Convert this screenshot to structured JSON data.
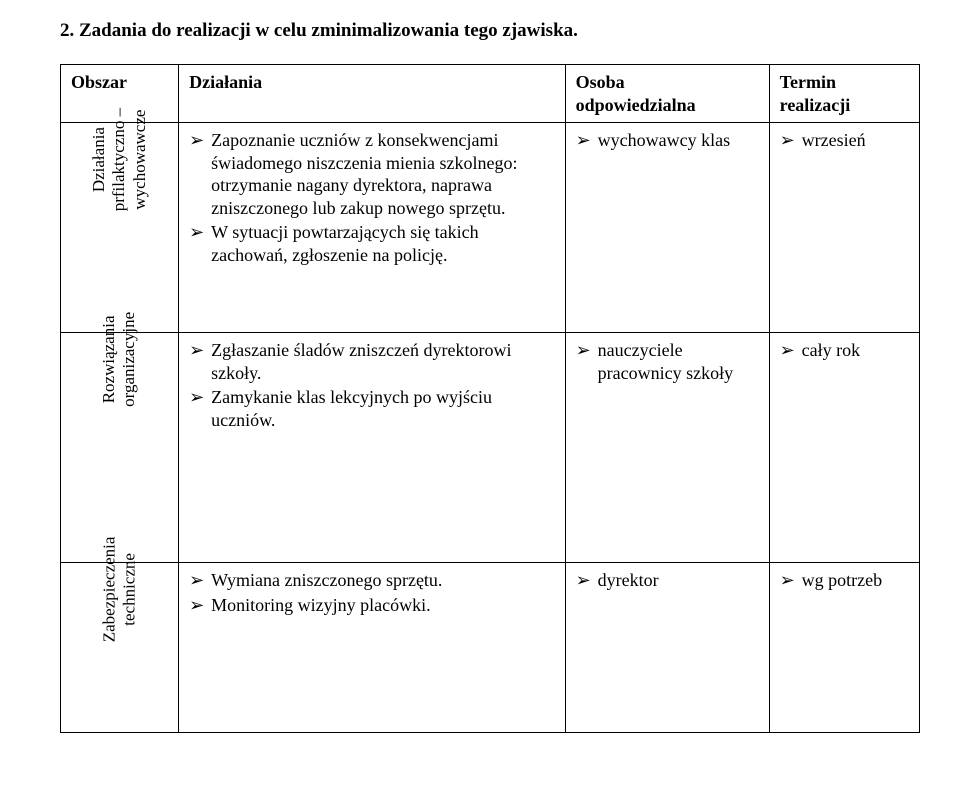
{
  "heading": "2. Zadania do realizacji w celu zminimalizowania tego zjawiska.",
  "headers": {
    "obszar": "Obszar",
    "dzialania": "Działania",
    "osoba_line1": "Osoba",
    "osoba_line2": "odpowiedzialna",
    "termin_line1": "Termin",
    "termin_line2": "realizacji"
  },
  "rows": [
    {
      "sideTop": "Działania",
      "sideMid": "prfilaktyczno –",
      "sideBot": "wychowawcze",
      "actions": [
        "Zapoznanie uczniów z konsekwencjami świadomego niszczenia mienia szkolnego: otrzymanie nagany dyrektora, naprawa zniszczonego lub zakup nowego sprzętu.",
        "W sytuacji powtarzających się takich zachowań, zgłoszenie na policję."
      ],
      "responsible": [
        "wychowawcy klas"
      ],
      "term": [
        "wrzesień"
      ]
    },
    {
      "sideTop": "Rozwiązania",
      "sideBot": "organizacyjne",
      "actions": [
        "Zgłaszanie śladów zniszczeń dyrektorowi szkoły.",
        "Zamykanie klas lekcyjnych po wyjściu uczniów."
      ],
      "responsible": [
        "nauczyciele pracownicy szkoły"
      ],
      "term": [
        "cały rok"
      ]
    },
    {
      "sideTop": "Zabezpieczenia",
      "sideBot": "techniczne",
      "actions": [
        "Wymiana zniszczonego sprzętu.",
        "Monitoring wizyjny placówki."
      ],
      "responsible": [
        "dyrektor"
      ],
      "term": [
        "wg potrzeb"
      ]
    }
  ]
}
